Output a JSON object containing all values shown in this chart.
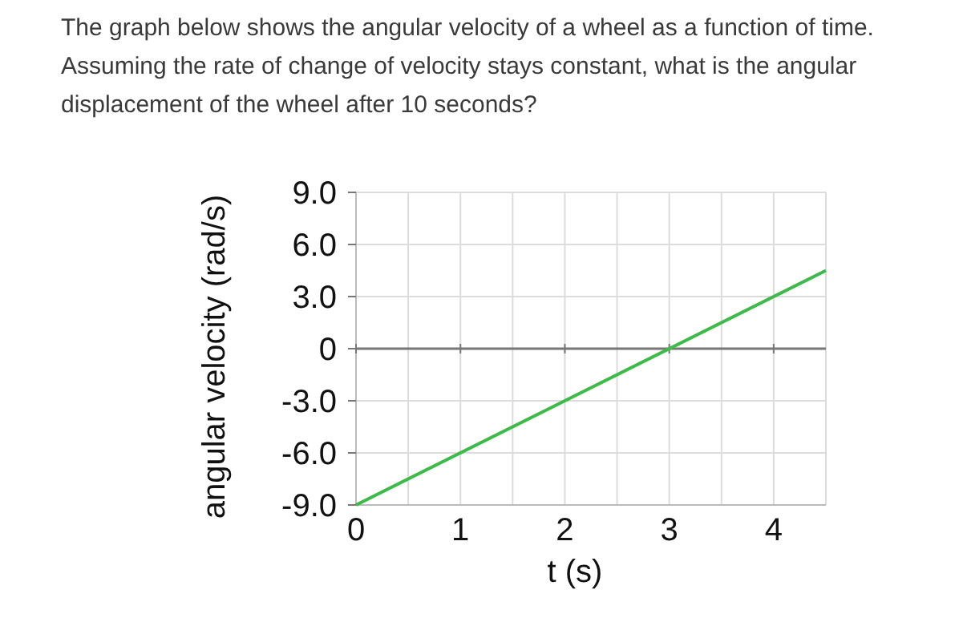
{
  "chart_data": {
    "type": "line",
    "title": "The graph below shows the angular velocity of a wheel as a function of time. Assuming the rate of change of velocity stays constant, what is the angular displacement of the wheel after 10 seconds?",
    "xlabel": "t (s)",
    "ylabel": "angular velocity (rad/s)",
    "x": [
      0,
      4.5
    ],
    "series": [
      {
        "color": "#3dbb4a",
        "values": [
          -9,
          4.5
        ]
      }
    ],
    "xlim": [
      0,
      4.5
    ],
    "ylim": [
      -9,
      9
    ],
    "xticks": [
      0,
      {
        "value": 0.5,
        "label": null
      },
      1,
      {
        "value": 1.5,
        "label": null
      },
      2,
      {
        "value": 2.5,
        "label": null
      },
      3,
      {
        "value": 3.5,
        "label": null
      },
      4
    ],
    "yticks": [
      {
        "value": -9,
        "label": "-9.0"
      },
      {
        "value": -6,
        "label": "-6.0"
      },
      {
        "value": -3,
        "label": "-3.0"
      },
      0,
      {
        "value": 3,
        "label": "3.0"
      },
      {
        "value": 6,
        "label": "6.0"
      },
      {
        "value": 9,
        "label": "9.0"
      }
    ],
    "ref_lines": [
      {
        "axis": "y",
        "value": 0,
        "color": "#777777"
      }
    ],
    "grid": true,
    "marker": "none",
    "line_style": "solid"
  }
}
